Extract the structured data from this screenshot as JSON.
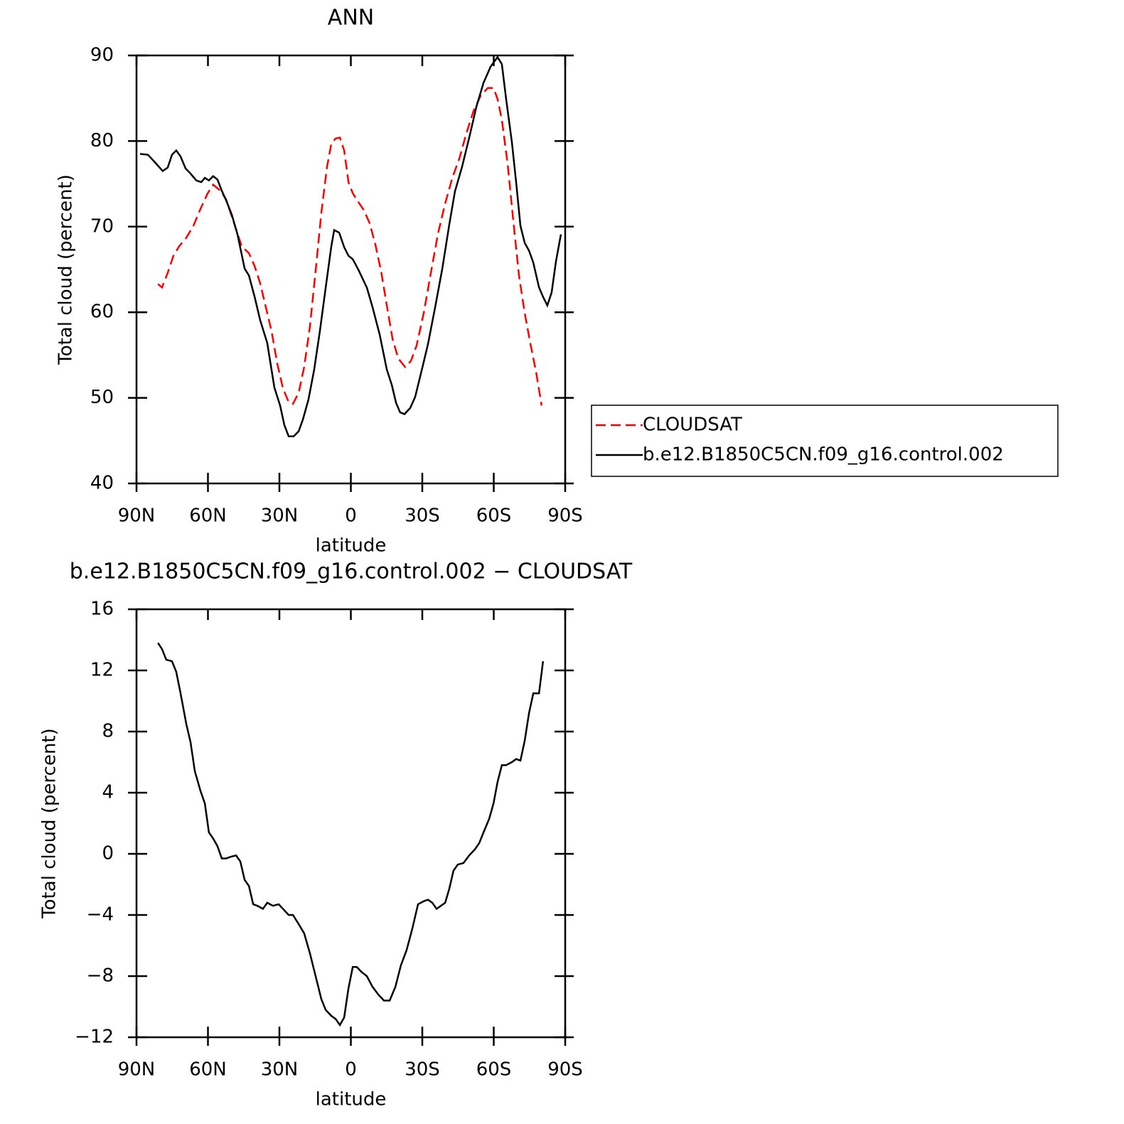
{
  "chart_data": [
    {
      "type": "line",
      "title": "ANN",
      "x_label": "latitude",
      "y_label": "Total cloud (percent)",
      "xlim": [
        90,
        -90
      ],
      "xticks": [
        {
          "value": 90,
          "label": "90N"
        },
        {
          "value": 60,
          "label": "60N"
        },
        {
          "value": 30,
          "label": "30N"
        },
        0,
        {
          "value": -30,
          "label": "30S"
        },
        {
          "value": -60,
          "label": "60S"
        },
        {
          "value": -90,
          "label": "90S"
        }
      ],
      "ylim": [
        40,
        90
      ],
      "yticks": [
        40,
        50,
        60,
        70,
        80,
        90
      ],
      "legend": "right",
      "series": [
        {
          "name": "CLOUDSAT",
          "color": "#ff0000",
          "dash": "dashed",
          "x": [
            81.0,
            79.3,
            76.9,
            74.5,
            72.1,
            69.1,
            66.1,
            63.1,
            60.1,
            57.8,
            54.8,
            52.4,
            50.0,
            47.6,
            45.8,
            42.8,
            40.4,
            38.1,
            35.7,
            33.3,
            30.9,
            28.5,
            26.1,
            24.3,
            21.9,
            19.6,
            17.2,
            14.8,
            12.4,
            10.0,
            8.2,
            6.4,
            4.6,
            2.8,
            1.0,
            -0.8,
            -3.1,
            -5.5,
            -7.9,
            -10.3,
            -12.7,
            -15.1,
            -17.5,
            -19.9,
            -22.8,
            -25.2,
            -27.6,
            -30.6,
            -33.6,
            -36.6,
            -39.6,
            -42.6,
            -45.6,
            -48.5,
            -51.5,
            -54.5,
            -57.5,
            -59.9,
            -61.6,
            -63.4,
            -65.8,
            -68.2,
            -70.6,
            -73.0,
            -75.4,
            -77.8,
            -80.1
          ],
          "values": [
            63.3,
            62.9,
            64.6,
            66.6,
            67.7,
            68.7,
            70.1,
            72.1,
            73.9,
            74.9,
            74.2,
            73.2,
            71.2,
            69.2,
            67.7,
            66.9,
            65.4,
            63.4,
            60.6,
            57.8,
            54.0,
            51.1,
            49.5,
            49.3,
            50.6,
            53.6,
            58.3,
            64.8,
            71.6,
            77.0,
            79.7,
            80.3,
            80.4,
            78.9,
            75.2,
            73.9,
            72.9,
            71.9,
            70.4,
            67.9,
            64.8,
            60.8,
            56.9,
            54.6,
            53.6,
            54.3,
            56.1,
            59.9,
            64.6,
            69.2,
            72.7,
            75.7,
            78.0,
            80.9,
            83.5,
            85.3,
            86.2,
            86.2,
            84.9,
            82.5,
            77.4,
            70.7,
            64.3,
            59.9,
            56.3,
            53.0,
            49.1
          ]
        },
        {
          "name": "b.e12.B1850C5CN.f09_g16.control.002",
          "color": "#000000",
          "dash": "solid",
          "x": [
            88.5,
            85.2,
            82.2,
            79.0,
            76.9,
            75.1,
            73.3,
            71.5,
            69.4,
            67.3,
            64.9,
            62.8,
            61.3,
            59.6,
            57.8,
            56.0,
            54.2,
            52.4,
            50.0,
            47.6,
            44.6,
            42.8,
            40.4,
            38.1,
            35.1,
            32.1,
            29.7,
            27.9,
            26.1,
            24.0,
            21.9,
            20.1,
            17.8,
            15.4,
            13.0,
            10.6,
            8.2,
            7.0,
            4.9,
            2.8,
            1.0,
            -0.8,
            -3.1,
            -6.7,
            -9.1,
            -12.1,
            -15.1,
            -17.2,
            -19.0,
            -20.7,
            -22.5,
            -24.9,
            -27.0,
            -30.0,
            -32.4,
            -35.4,
            -38.4,
            -41.3,
            -43.7,
            -46.7,
            -49.7,
            -52.7,
            -55.7,
            -58.7,
            -61.6,
            -63.4,
            -65.2,
            -67.6,
            -69.4,
            -71.2,
            -73.0,
            -74.8,
            -76.6,
            -79.0,
            -80.7,
            -82.5,
            -84.3,
            -86.1,
            -88.2
          ],
          "values": [
            78.5,
            78.4,
            77.5,
            76.5,
            76.9,
            78.4,
            78.9,
            78.2,
            76.8,
            76.2,
            75.4,
            75.2,
            75.7,
            75.4,
            75.9,
            75.5,
            74.2,
            73.1,
            71.4,
            69.1,
            65.1,
            64.3,
            61.8,
            59.1,
            56.4,
            51.2,
            49.1,
            46.8,
            45.5,
            45.5,
            46.1,
            47.5,
            49.8,
            53.3,
            57.8,
            62.8,
            67.7,
            69.6,
            69.3,
            67.6,
            66.6,
            66.2,
            65.0,
            62.9,
            60.6,
            57.4,
            53.3,
            51.5,
            49.4,
            48.3,
            48.1,
            48.8,
            50.1,
            53.5,
            56.3,
            60.6,
            65.1,
            70.2,
            74.1,
            77.0,
            80.4,
            84.0,
            86.8,
            88.7,
            89.8,
            89.0,
            84.9,
            79.9,
            75.2,
            70.1,
            68.1,
            67.2,
            65.8,
            62.9,
            61.8,
            60.8,
            62.3,
            65.9,
            69.1
          ]
        }
      ]
    },
    {
      "type": "line",
      "title": "b.e12.B1850C5CN.f09_g16.control.002 − CLOUDSAT",
      "x_label": "latitude",
      "y_label": "Total cloud (percent)",
      "xlim": [
        90,
        -90
      ],
      "xticks": [
        {
          "value": 90,
          "label": "90N"
        },
        {
          "value": 60,
          "label": "60N"
        },
        {
          "value": 30,
          "label": "30N"
        },
        0,
        {
          "value": -30,
          "label": "30S"
        },
        {
          "value": -60,
          "label": "60S"
        },
        {
          "value": -90,
          "label": "90S"
        }
      ],
      "ylim": [
        -12,
        16
      ],
      "yticks": [
        {
          "value": -12,
          "label": "−12"
        },
        {
          "value": -8,
          "label": "−8"
        },
        {
          "value": -4,
          "label": "−4"
        },
        0,
        4,
        8,
        12,
        16
      ],
      "series": [
        {
          "color": "#000000",
          "dash": "solid",
          "x": [
            81.0,
            79.3,
            77.5,
            75.1,
            73.3,
            71.5,
            69.1,
            67.3,
            65.5,
            63.1,
            61.3,
            59.6,
            57.8,
            56.0,
            54.2,
            52.4,
            50.6,
            48.2,
            46.4,
            44.6,
            42.8,
            41.0,
            39.2,
            36.9,
            35.1,
            32.7,
            30.3,
            27.9,
            26.1,
            24.3,
            21.9,
            19.6,
            17.2,
            14.8,
            12.4,
            10.6,
            8.2,
            6.4,
            4.6,
            2.8,
            1.0,
            -0.8,
            -2.5,
            -4.3,
            -6.7,
            -9.1,
            -11.5,
            -13.9,
            -16.3,
            -18.7,
            -21.0,
            -23.4,
            -25.8,
            -28.2,
            -30.6,
            -32.4,
            -34.2,
            -36.0,
            -39.6,
            -41.3,
            -43.1,
            -44.9,
            -47.3,
            -49.7,
            -52.1,
            -53.9,
            -55.7,
            -58.1,
            -59.9,
            -61.6,
            -63.4,
            -65.2,
            -67.6,
            -69.4,
            -71.2,
            -73.0,
            -74.8,
            -76.6,
            -79.0,
            -80.7
          ],
          "values": [
            13.8,
            13.4,
            12.7,
            12.6,
            11.9,
            10.5,
            8.5,
            7.3,
            5.4,
            4.1,
            3.3,
            1.4,
            1.0,
            0.5,
            -0.3,
            -0.3,
            -0.2,
            -0.1,
            -0.5,
            -1.7,
            -2.1,
            -3.3,
            -3.4,
            -3.6,
            -3.2,
            -3.4,
            -3.3,
            -3.7,
            -4.0,
            -4.0,
            -4.6,
            -5.2,
            -6.5,
            -8.0,
            -9.5,
            -10.2,
            -10.6,
            -10.8,
            -11.2,
            -10.7,
            -8.8,
            -7.4,
            -7.4,
            -7.7,
            -8.0,
            -8.7,
            -9.2,
            -9.6,
            -9.6,
            -8.7,
            -7.3,
            -6.3,
            -4.9,
            -3.3,
            -3.1,
            -3.0,
            -3.2,
            -3.6,
            -3.2,
            -2.3,
            -1.1,
            -0.7,
            -0.6,
            -0.1,
            0.3,
            0.7,
            1.4,
            2.3,
            3.3,
            4.7,
            5.8,
            5.8,
            6.0,
            6.2,
            6.1,
            7.4,
            9.2,
            10.5,
            10.5,
            12.6
          ]
        }
      ]
    }
  ]
}
